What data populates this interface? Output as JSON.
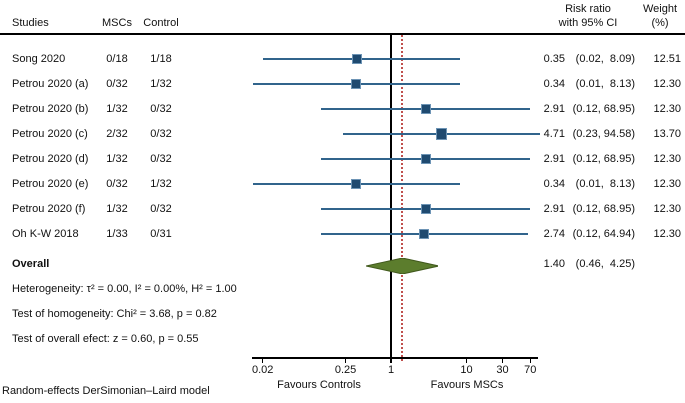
{
  "table": {
    "headers": {
      "studies": "Studies",
      "mscs": "MSCs",
      "control": "Control",
      "risk_ratio_line1": "Risk ratio",
      "risk_ratio_line2": "with 95% CI",
      "weight_line1": "Weight",
      "weight_line2": "(%)"
    }
  },
  "chart_data": {
    "type": "forest",
    "x_scale": "log10",
    "x_axis": {
      "ticks": [
        0.02,
        0.25,
        1,
        10,
        30,
        70
      ],
      "tick_labels": [
        "0.02",
        "0.25",
        "1",
        "10",
        "30",
        "70"
      ],
      "range": [
        0.02,
        70
      ]
    },
    "reference_line": 1,
    "overall_line": 1.4,
    "favours_left": "Favours Controls",
    "favours_right": "Favours MSCs",
    "studies": [
      {
        "name": "Song 2020",
        "mscs": "0/18",
        "control": "1/18",
        "rr": 0.35,
        "ci_low": 0.02,
        "ci_high": 8.09,
        "est_text": "0.35",
        "ci_text": "(0.02,  8.09)",
        "weight": 12.51,
        "weight_text": "12.51"
      },
      {
        "name": "Petrou 2020 (a)",
        "mscs": "0/32",
        "control": "1/32",
        "rr": 0.34,
        "ci_low": 0.01,
        "ci_high": 8.13,
        "est_text": "0.34",
        "ci_text": "(0.01,  8.13)",
        "weight": 12.3,
        "weight_text": "12.30"
      },
      {
        "name": "Petrou 2020 (b)",
        "mscs": "1/32",
        "control": "0/32",
        "rr": 2.91,
        "ci_low": 0.12,
        "ci_high": 68.95,
        "est_text": "2.91",
        "ci_text": "(0.12, 68.95)",
        "weight": 12.3,
        "weight_text": "12.30"
      },
      {
        "name": "Petrou 2020 (c)",
        "mscs": "2/32",
        "control": "0/32",
        "rr": 4.71,
        "ci_low": 0.23,
        "ci_high": 94.58,
        "est_text": "4.71",
        "ci_text": "(0.23, 94.58)",
        "weight": 13.7,
        "weight_text": "13.70"
      },
      {
        "name": "Petrou 2020 (d)",
        "mscs": "1/32",
        "control": "0/32",
        "rr": 2.91,
        "ci_low": 0.12,
        "ci_high": 68.95,
        "est_text": "2.91",
        "ci_text": "(0.12, 68.95)",
        "weight": 12.3,
        "weight_text": "12.30"
      },
      {
        "name": "Petrou 2020 (e)",
        "mscs": "0/32",
        "control": "1/32",
        "rr": 0.34,
        "ci_low": 0.01,
        "ci_high": 8.13,
        "est_text": "0.34",
        "ci_text": "(0.01,  8.13)",
        "weight": 12.3,
        "weight_text": "12.30"
      },
      {
        "name": "Petrou 2020 (f)",
        "mscs": "1/32",
        "control": "0/32",
        "rr": 2.91,
        "ci_low": 0.12,
        "ci_high": 68.95,
        "est_text": "2.91",
        "ci_text": "(0.12, 68.95)",
        "weight": 12.3,
        "weight_text": "12.30"
      },
      {
        "name": "Oh K-W 2018",
        "mscs": "1/33",
        "control": "0/31",
        "rr": 2.74,
        "ci_low": 0.12,
        "ci_high": 64.94,
        "est_text": "2.74",
        "ci_text": "(0.12, 64.94)",
        "weight": 12.3,
        "weight_text": "12.30"
      }
    ],
    "overall": {
      "label": "Overall",
      "rr": 1.4,
      "ci_low": 0.46,
      "ci_high": 4.25,
      "est_text": "1.40",
      "ci_text": "(0.46,  4.25)"
    },
    "stats": [
      "Heterogeneity: τ² = 0.00, I² = 0.00%, H² = 1.00",
      "Test of homogeneity: Chi² = 3.68, p = 0.82",
      "Test of overall efect: z = 0.60, p = 0.55"
    ],
    "footer": "Random-effects DerSimonian–Laird model",
    "colors": {
      "marker": "#1f4a70",
      "marker_edge": "#6d94b5",
      "ci_line": "#31648c",
      "diamond": "#5c7d2d",
      "diamond_edge": "#41591d",
      "reference_line": "#000000",
      "overall_line": "#c0504d"
    }
  }
}
